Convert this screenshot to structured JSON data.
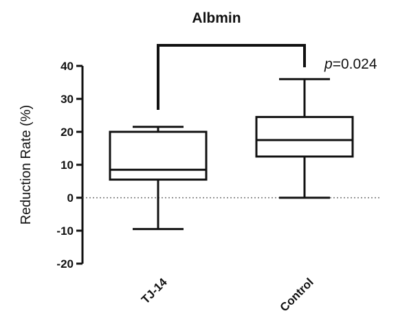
{
  "chart_data": {
    "type": "box",
    "title": "Albmin",
    "xlabel": "",
    "ylabel": "Reduction Rate (%)",
    "ylim": [
      -20,
      40
    ],
    "yticks": [
      "40",
      "30",
      "20",
      "10",
      "0",
      "-10",
      "-20"
    ],
    "reference_line": {
      "y": 0,
      "style": "dotted"
    },
    "categories": [
      "TJ-14",
      "Control"
    ],
    "boxes": [
      {
        "category": "TJ-14",
        "min": -9.5,
        "q1": 5.5,
        "median": 8.5,
        "q3": 20,
        "max": 21.5
      },
      {
        "category": "Control",
        "min": 0,
        "q1": 12.5,
        "median": 17.5,
        "q3": 24.5,
        "max": 36
      }
    ],
    "annotation": {
      "prefix": "p",
      "text": "=0.024"
    },
    "grid": false,
    "legend": "none"
  }
}
